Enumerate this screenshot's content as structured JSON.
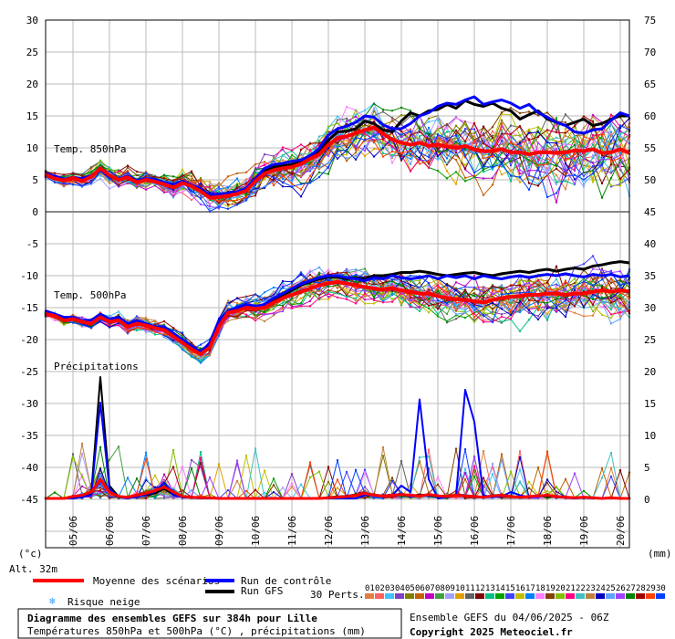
{
  "chart_data": {
    "type": "line",
    "title": "Diagramme des ensembles GEFS sur 384h pour Lille",
    "subtitle": "Températures 850hPa et 500hPa (°C) , précipitations (mm)",
    "run_info": "Ensemble GEFS du 04/06/2025 - 06Z",
    "copyright": "Copyright 2025 Meteociel.fr",
    "altitude": "Alt. 32m",
    "left_unit": "(°c)",
    "right_unit": "(mm)",
    "panel_labels": [
      "Temp. 850hPa",
      "Temp. 500hPa",
      "Précipitations"
    ],
    "left_ticks": [
      "30",
      "25",
      "20",
      "15",
      "10",
      "5",
      "0",
      "-5",
      "-10",
      "-15",
      "-20",
      "-25",
      "-30",
      "-35",
      "-40",
      "-45"
    ],
    "right_ticks_850": [
      "75",
      "70",
      "65",
      "60",
      "55",
      "50",
      "45"
    ],
    "right_ticks_500": [
      "40",
      "35",
      "30",
      "25",
      "20",
      "15",
      "10",
      "5",
      "0"
    ],
    "x_dates": [
      "05/06",
      "06/06",
      "07/06",
      "08/06",
      "09/06",
      "10/06",
      "11/06",
      "12/06",
      "13/06",
      "14/06",
      "15/06",
      "16/06",
      "17/06",
      "18/06",
      "19/06",
      "20/06"
    ],
    "legend": {
      "mean": "Moyenne des scénarios",
      "control": "Run de contrôle",
      "gfs": "Run GFS",
      "snow": "Risque neige",
      "perts": "30 Perts.",
      "mean_color": "#ff0000",
      "control_color": "#0000ff",
      "gfs_color": "#000000"
    },
    "perturbation_labels": [
      "01",
      "02",
      "03",
      "04",
      "05",
      "06",
      "07",
      "08",
      "09",
      "10",
      "11",
      "12",
      "13",
      "14",
      "15",
      "16",
      "17",
      "18",
      "19",
      "20",
      "21",
      "22",
      "23",
      "24",
      "25",
      "26",
      "27",
      "28",
      "29",
      "30"
    ],
    "perturbation_colors": [
      "#e08040",
      "#ff6060",
      "#40c0ff",
      "#8040c0",
      "#808000",
      "#c06000",
      "#c000c0",
      "#40a040",
      "#a0a0ff",
      "#e0a000",
      "#606060",
      "#800000",
      "#00c080",
      "#00a000",
      "#4040ff",
      "#c0c000",
      "#0080ff",
      "#ff80ff",
      "#804000",
      "#80c000",
      "#ff0080",
      "#40c0c0",
      "#c08040",
      "#0000c0",
      "#60a0ff",
      "#a040ff",
      "#008000",
      "#a00000",
      "#ff4000",
      "#0040ff"
    ],
    "x_steps": 65,
    "t850": {
      "ylim": [
        0,
        30
      ],
      "mean": [
        5.8,
        5.2,
        4.9,
        5.3,
        4.8,
        5.5,
        6.8,
        5.7,
        5.0,
        5.4,
        4.6,
        5.0,
        4.7,
        4.3,
        3.8,
        4.5,
        4.0,
        3.2,
        2.2,
        2.3,
        2.5,
        2.8,
        3.3,
        4.8,
        6.0,
        6.5,
        6.8,
        7.0,
        7.5,
        8.3,
        9.0,
        10.5,
        11.5,
        11.8,
        12.3,
        12.8,
        13.2,
        12.2,
        11.3,
        10.8,
        10.5,
        10.8,
        10.3,
        10.5,
        10.2,
        10.0,
        10.3,
        9.8,
        9.5,
        9.5,
        9.8,
        9.3,
        9.3,
        9.0,
        9.3,
        9.3,
        9.2,
        9.3,
        9.6,
        9.5,
        9.8,
        9.2,
        9.3,
        9.8,
        9.2
      ],
      "control": [
        6.0,
        5.6,
        5.1,
        5.4,
        5.2,
        5.7,
        6.6,
        5.5,
        5.1,
        5.6,
        4.9,
        5.2,
        5.1,
        4.6,
        4.3,
        4.8,
        4.2,
        3.6,
        2.6,
        2.8,
        2.9,
        3.1,
        3.7,
        5.2,
        6.8,
        7.4,
        7.6,
        7.9,
        8.1,
        8.8,
        9.9,
        12.0,
        13.0,
        13.4,
        14.0,
        15.0,
        14.8,
        13.6,
        13.0,
        13.0,
        13.8,
        15.0,
        15.5,
        16.5,
        17.0,
        16.8,
        17.5,
        18.0,
        16.8,
        17.2,
        17.5,
        17.0,
        16.2,
        16.8,
        15.5,
        14.8,
        14.0,
        13.5,
        12.5,
        12.3,
        12.8,
        13.0,
        14.3,
        15.5,
        15.0
      ],
      "gfs": [
        5.9,
        5.4,
        5.0,
        5.4,
        5.0,
        5.6,
        6.7,
        5.5,
        5.0,
        5.5,
        4.7,
        5.0,
        4.8,
        4.5,
        4.0,
        4.7,
        4.1,
        3.4,
        2.4,
        2.5,
        2.6,
        2.9,
        3.5,
        5.0,
        6.4,
        7.0,
        7.2,
        7.4,
        7.8,
        8.5,
        9.5,
        11.2,
        12.5,
        12.6,
        13.0,
        14.2,
        13.8,
        12.8,
        12.5,
        14.2,
        15.5,
        15.0,
        15.8,
        16.0,
        16.8,
        16.2,
        17.4,
        16.8,
        16.5,
        17.0,
        16.2,
        15.8,
        14.5,
        15.2,
        15.8,
        14.5,
        14.0,
        13.5,
        14.0,
        14.5,
        13.5,
        13.8,
        14.5,
        15.0,
        15.0
      ]
    },
    "t500": {
      "ylim": [
        -25,
        -5
      ],
      "mean": [
        -16.0,
        -16.3,
        -17.0,
        -16.8,
        -17.2,
        -17.5,
        -16.5,
        -17.2,
        -17.0,
        -18.0,
        -17.5,
        -17.8,
        -18.2,
        -18.5,
        -19.5,
        -20.5,
        -21.5,
        -22.3,
        -21.2,
        -18.0,
        -15.8,
        -15.5,
        -15.0,
        -15.2,
        -15.0,
        -14.2,
        -13.5,
        -13.0,
        -12.5,
        -12.0,
        -11.5,
        -11.2,
        -11.0,
        -11.2,
        -11.5,
        -11.8,
        -12.0,
        -12.2,
        -12.0,
        -12.3,
        -12.5,
        -12.8,
        -12.8,
        -13.2,
        -13.5,
        -13.7,
        -13.8,
        -14.0,
        -14.2,
        -13.8,
        -13.5,
        -13.3,
        -13.2,
        -13.0,
        -13.0,
        -12.8,
        -12.8,
        -13.0,
        -12.8,
        -12.8,
        -12.5,
        -12.3,
        -12.5,
        -12.3,
        -12.5
      ],
      "control": [
        -15.5,
        -16.0,
        -16.5,
        -16.5,
        -17.0,
        -17.0,
        -16.0,
        -16.8,
        -16.5,
        -17.5,
        -17.0,
        -17.5,
        -18.0,
        -18.0,
        -19.0,
        -20.0,
        -21.0,
        -22.0,
        -20.5,
        -17.0,
        -15.5,
        -15.0,
        -14.5,
        -14.8,
        -14.5,
        -13.5,
        -12.8,
        -12.0,
        -11.3,
        -10.8,
        -10.3,
        -10.0,
        -10.0,
        -10.3,
        -10.5,
        -10.8,
        -10.3,
        -10.5,
        -10.0,
        -10.3,
        -10.5,
        -10.3,
        -10.0,
        -10.5,
        -10.0,
        -10.3,
        -10.0,
        -10.5,
        -10.0,
        -10.3,
        -10.5,
        -10.2,
        -10.0,
        -10.3,
        -10.0,
        -9.8,
        -10.0,
        -9.7,
        -10.0,
        -10.2,
        -9.8,
        -10.0,
        -9.8,
        -10.2,
        -10.0
      ],
      "gfs": [
        -15.8,
        -16.1,
        -16.8,
        -16.6,
        -17.1,
        -17.3,
        -16.3,
        -17.0,
        -16.8,
        -17.8,
        -17.3,
        -17.6,
        -18.1,
        -18.3,
        -19.3,
        -20.3,
        -21.3,
        -22.2,
        -20.8,
        -17.5,
        -15.6,
        -15.2,
        -14.7,
        -15.0,
        -14.7,
        -13.8,
        -13.0,
        -12.3,
        -11.5,
        -11.0,
        -10.5,
        -10.2,
        -10.2,
        -10.5,
        -10.3,
        -10.5,
        -10.0,
        -10.0,
        -9.8,
        -9.5,
        -9.5,
        -9.3,
        -9.5,
        -9.8,
        -10.0,
        -9.8,
        -9.6,
        -9.5,
        -9.8,
        -10.0,
        -9.7,
        -9.5,
        -9.3,
        -9.5,
        -9.2,
        -9.0,
        -9.3,
        -9.0,
        -8.8,
        -9.0,
        -8.5,
        -8.3,
        -8.0,
        -7.8,
        -8.0
      ]
    },
    "precip": {
      "ylim": [
        0,
        20
      ],
      "mean": [
        0,
        0,
        0,
        0.3,
        0.5,
        1.0,
        3.0,
        1.0,
        0.3,
        0.2,
        0.5,
        0.8,
        1.2,
        1.8,
        1.0,
        0.3,
        0.2,
        0.1,
        0.1,
        0,
        0,
        0,
        0,
        0,
        0,
        0,
        0,
        0,
        0,
        0,
        0,
        0.1,
        0.2,
        0.3,
        0.5,
        0.8,
        0.5,
        0.4,
        0.5,
        0.6,
        0.5,
        0.4,
        0.6,
        0.4,
        0.3,
        0.5,
        0.4,
        0.3,
        0.2,
        0.4,
        0.5,
        0.3,
        0.2,
        0.3,
        0.4,
        0.5,
        0.3,
        0.2,
        0.1,
        0.2,
        0.1,
        0,
        0.1,
        0,
        0
      ],
      "control": [
        0,
        0,
        0,
        0,
        0.2,
        0.5,
        15.0,
        1.5,
        0.2,
        0,
        0.3,
        0.6,
        1.0,
        2.5,
        0.5,
        0.2,
        0.1,
        0,
        0,
        0,
        0,
        0,
        0,
        0,
        0,
        0,
        0,
        0,
        0,
        0,
        0,
        0,
        0,
        0,
        0,
        0.5,
        0.5,
        0.3,
        0.5,
        2.0,
        1.0,
        15.5,
        3.0,
        0,
        0.2,
        0.5,
        17.0,
        12.0,
        0.5,
        0.2,
        0.3,
        1.0,
        0.5,
        0.2,
        0.3,
        0.5,
        0.2,
        0.1,
        0,
        0.1,
        0,
        0,
        0,
        0,
        0
      ],
      "gfs": [
        0,
        0,
        0,
        0.3,
        0.4,
        0.8,
        19.0,
        2.0,
        0.3,
        0.1,
        0.4,
        0.5,
        0.8,
        1.5,
        0.6,
        0.2,
        0.1,
        0.1,
        0,
        0,
        0,
        0,
        0,
        0,
        0,
        0,
        0,
        0,
        0,
        0,
        0,
        0.2,
        0.3,
        0.4,
        0.6,
        0.7,
        0.5,
        0.4,
        0.6,
        0.5,
        0.4,
        0.6,
        0.5,
        0.3,
        0.3,
        0.5,
        0.3,
        0.3,
        0.2,
        0.4,
        0.5,
        0.2,
        0.3,
        0.2,
        0.4,
        0.3,
        0.2,
        0.2,
        0.1,
        0.1,
        0.1,
        0,
        0,
        0,
        0
      ]
    }
  }
}
